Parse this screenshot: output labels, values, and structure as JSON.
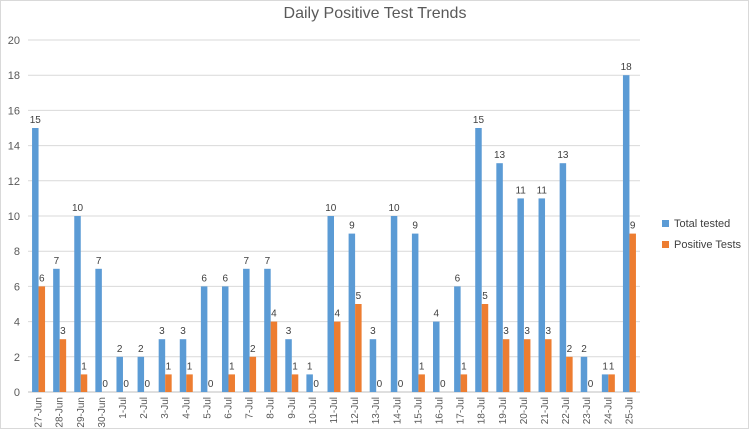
{
  "chart_data": {
    "type": "bar",
    "title": "Daily Positive Test Trends",
    "xlabel": "",
    "ylabel": "",
    "ylim": [
      0,
      20
    ],
    "ytick_step": 2,
    "grid": true,
    "legend_position": "right",
    "categories": [
      "27-Jun",
      "28-Jun",
      "29-Jun",
      "30-Jun",
      "1-Jul",
      "2-Jul",
      "3-Jul",
      "4-Jul",
      "5-Jul",
      "6-Jul",
      "7-Jul",
      "8-Jul",
      "9-Jul",
      "10-Jul",
      "11-Jul",
      "12-Jul",
      "13-Jul",
      "14-Jul",
      "15-Jul",
      "16-Jul",
      "17-Jul",
      "18-Jul",
      "19-Jul",
      "20-Jul",
      "21-Jul",
      "22-Jul",
      "23-Jul",
      "24-Jul",
      "25-Jul"
    ],
    "series": [
      {
        "name": "Total tested",
        "color": "#5b9bd5",
        "values": [
          15,
          7,
          10,
          7,
          2,
          2,
          3,
          3,
          6,
          6,
          7,
          7,
          3,
          1,
          10,
          9,
          3,
          10,
          9,
          4,
          6,
          15,
          13,
          11,
          11,
          13,
          2,
          1,
          18
        ]
      },
      {
        "name": "Positive Tests",
        "color": "#ed7d31",
        "values": [
          6,
          3,
          1,
          0,
          0,
          0,
          1,
          1,
          0,
          1,
          2,
          4,
          1,
          0,
          4,
          5,
          0,
          0,
          1,
          0,
          1,
          5,
          3,
          3,
          3,
          2,
          0,
          1,
          9
        ]
      }
    ]
  }
}
